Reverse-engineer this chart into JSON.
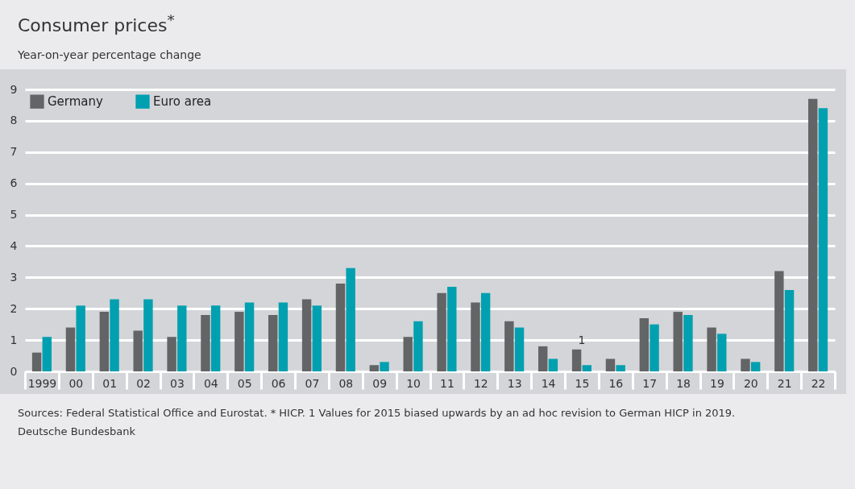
{
  "chart_data": {
    "type": "bar",
    "title": "Consumer prices$^{*}$",
    "subtitle": "Year-on-year percentage change",
    "categories": [
      "1999",
      "00",
      "01",
      "02",
      "03",
      "04",
      "05",
      "06",
      "07",
      "08",
      "09",
      "10",
      "11",
      "12",
      "13",
      "14",
      "15",
      "16",
      "17",
      "18",
      "19",
      "20",
      "21",
      "22"
    ],
    "series": [
      {
        "name": "Germany",
        "color": "#636466",
        "values": [
          0.6,
          1.4,
          1.9,
          1.3,
          1.1,
          1.8,
          1.9,
          1.8,
          2.3,
          2.8,
          0.2,
          1.1,
          2.5,
          2.2,
          1.6,
          0.8,
          0.7,
          0.4,
          1.7,
          1.9,
          1.4,
          0.4,
          3.2,
          8.7
        ]
      },
      {
        "name": "Euro area",
        "color": "#00a0b0",
        "values": [
          1.1,
          2.1,
          2.3,
          2.3,
          2.1,
          2.1,
          2.2,
          2.2,
          2.1,
          3.3,
          0.3,
          1.6,
          2.7,
          2.5,
          1.4,
          0.4,
          0.2,
          0.2,
          1.5,
          1.8,
          1.2,
          0.3,
          2.6,
          8.4
        ]
      }
    ],
    "ylim": [
      0,
      9
    ],
    "yticks": [
      0,
      1,
      2,
      3,
      4,
      5,
      6,
      7,
      8,
      9
    ],
    "grid": "y",
    "legend": "top left",
    "annotations": [
      {
        "text": "1",
        "x": "15",
        "y": 0.7
      },
      "Sources: Federal Statistical Office and Eurostat. * HICP. 1 Values for 2015 biased upwards by an ad hoc revision to German HICP in 2019.",
      "Deutsche Bundesbank"
    ]
  }
}
